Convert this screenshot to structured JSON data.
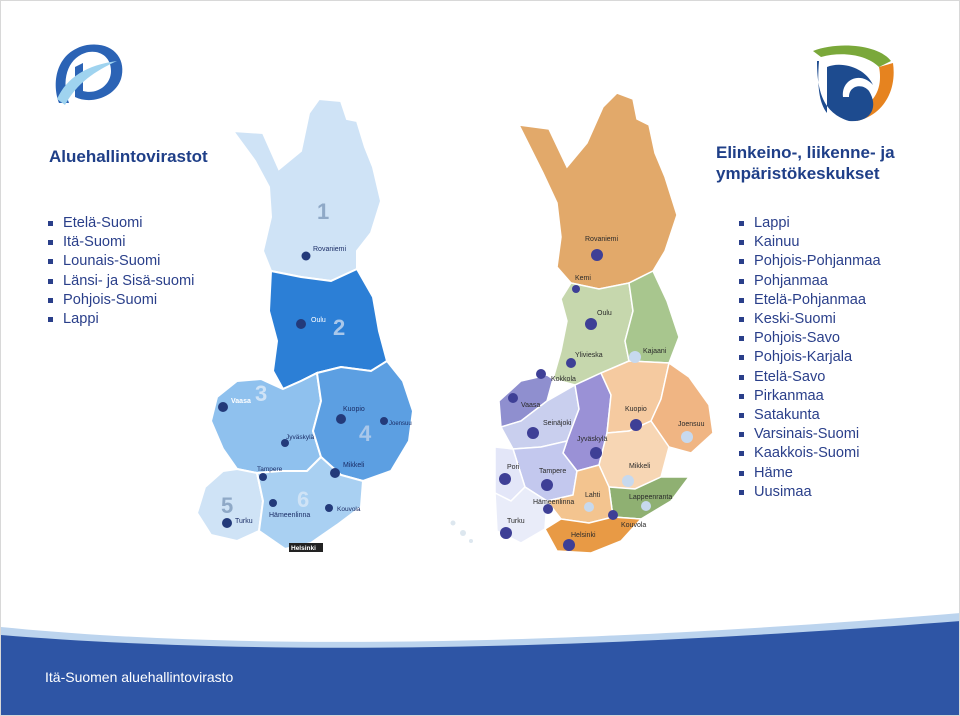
{
  "left": {
    "title": "Aluehallintovirastot",
    "items": [
      "Etelä-Suomi",
      "Itä-Suomi",
      "Lounais-Suomi",
      "Länsi- ja Sisä-suomi",
      "Pohjois-Suomi",
      "Lappi"
    ]
  },
  "right": {
    "title_line1": "Elinkeino-, liikenne- ja",
    "title_line2": "ympäristökeskukset",
    "items": [
      "Lappi",
      "Kainuu",
      "Pohjois-Pohjanmaa",
      "Pohjanmaa",
      "Etelä-Pohjanmaa",
      "Keski-Suomi",
      "Pohjois-Savo",
      "Pohjois-Karjala",
      "Etelä-Savo",
      "Pirkanmaa",
      "Satakunta",
      "Varsinais-Suomi",
      "Kaakkois-Suomi",
      "Häme",
      "Uusimaa"
    ]
  },
  "map_left": {
    "region_numbers": [
      "1",
      "2",
      "3",
      "4",
      "5",
      "6"
    ],
    "cities": [
      "Rovaniemi",
      "Oulu",
      "Vaasa",
      "Kuopio",
      "Joensuu",
      "Jyväskylä",
      "Tampere",
      "Mikkeli",
      "Turku",
      "Hämeenlinna",
      "Kouvola",
      "Helsinki"
    ]
  },
  "map_right": {
    "cities": [
      "Rovaniemi",
      "Kemi",
      "Oulu",
      "Ylivieska",
      "Kajaani",
      "Kokkola",
      "Vaasa",
      "Seinäjoki",
      "Kuopio",
      "Joensuu",
      "Jyväskylä",
      "Pori",
      "Tampere",
      "Mikkeli",
      "Hämeenlinna",
      "Lahti",
      "Lappeenranta",
      "Turku",
      "Kouvola",
      "Helsinki"
    ]
  },
  "footer": {
    "text": "Itä-Suomen aluehallintovirasto"
  },
  "colors": {
    "title": "#1f3f88",
    "text": "#2a3f8a",
    "footer": "#2e55a5"
  }
}
